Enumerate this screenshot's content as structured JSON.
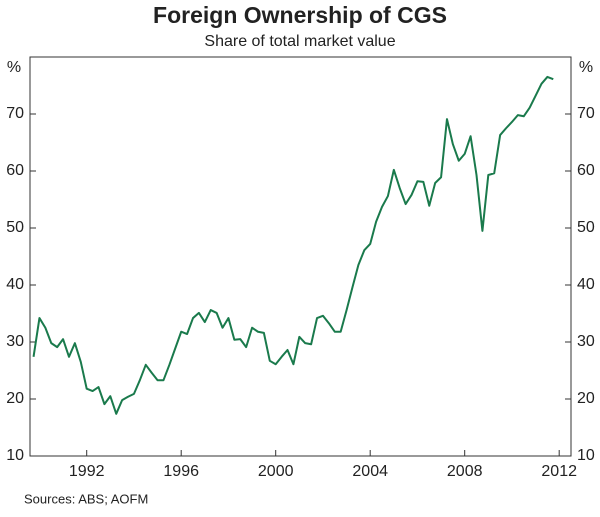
{
  "chart_data": {
    "type": "line",
    "title": "Foreign Ownership of CGS",
    "subtitle": "Share of total market value",
    "y_unit": "%",
    "source": "Sources: ABS; AOFM",
    "x": [
      1989.75,
      1990,
      1990.25,
      1990.5,
      1990.75,
      1991,
      1991.25,
      1991.5,
      1991.75,
      1992,
      1992.25,
      1992.5,
      1992.75,
      1993,
      1993.25,
      1993.5,
      1993.75,
      1994,
      1994.25,
      1994.5,
      1994.75,
      1995,
      1995.25,
      1995.5,
      1995.75,
      1996,
      1996.25,
      1996.5,
      1996.75,
      1997,
      1997.25,
      1997.5,
      1997.75,
      1998,
      1998.25,
      1998.5,
      1998.75,
      1999,
      1999.25,
      1999.5,
      1999.75,
      2000,
      2000.25,
      2000.5,
      2000.75,
      2001,
      2001.25,
      2001.5,
      2001.75,
      2002,
      2002.25,
      2002.5,
      2002.75,
      2003,
      2003.25,
      2003.5,
      2003.75,
      2004,
      2004.25,
      2004.5,
      2004.75,
      2005,
      2005.25,
      2005.5,
      2005.75,
      2006,
      2006.25,
      2006.5,
      2006.75,
      2007,
      2007.25,
      2007.5,
      2007.75,
      2008,
      2008.25,
      2008.5,
      2008.75,
      2009,
      2009.25,
      2009.5,
      2009.75,
      2010,
      2010.25,
      2010.5,
      2010.75,
      2011,
      2011.25,
      2011.5,
      2011.75
    ],
    "series": [
      {
        "color": "#1a7a4c",
        "values": [
          27.4,
          34.2,
          32.5,
          29.8,
          29.1,
          30.5,
          27.4,
          29.8,
          26.5,
          21.8,
          21.4,
          22.1,
          19.1,
          20.5,
          17.4,
          19.8,
          20.4,
          20.9,
          23.3,
          26.0,
          24.6,
          23.3,
          23.3,
          26.0,
          28.9,
          31.8,
          31.4,
          34.2,
          35.1,
          33.5,
          35.6,
          35.1,
          32.5,
          34.2,
          30.4,
          30.5,
          29.1,
          32.5,
          31.8,
          31.6,
          26.7,
          26.1,
          27.4,
          28.6,
          26.1,
          30.9,
          29.8,
          29.6,
          34.2,
          34.6,
          33.3,
          31.8,
          31.8,
          35.6,
          39.6,
          43.5,
          46.1,
          47.2,
          51.1,
          53.7,
          55.6,
          60.2,
          57.0,
          54.2,
          55.8,
          58.2,
          58.1,
          53.9,
          57.9,
          58.9,
          69.1,
          64.7,
          61.8,
          63.0,
          66.1,
          59.3,
          49.5,
          59.3,
          59.6,
          66.3,
          67.5,
          68.6,
          69.8,
          69.6,
          71.1,
          73.2,
          75.3,
          76.5,
          76.1
        ]
      }
    ],
    "xlim": [
      1989.6,
      2012.5
    ],
    "xticks": [
      1992,
      1996,
      2000,
      2004,
      2008,
      2012
    ],
    "ylim": [
      10,
      80
    ],
    "yticks": [
      10,
      20,
      30,
      40,
      50,
      60,
      70
    ],
    "grid": false
  }
}
